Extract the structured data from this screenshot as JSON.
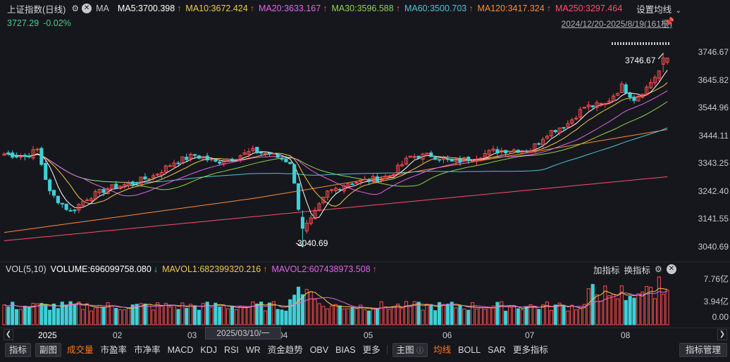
{
  "header": {
    "index_name": "上证指数",
    "period": "(日线)",
    "ma_label": "MA",
    "ma_items": [
      {
        "label": "MA5:3700.398",
        "color": "#ffffff",
        "arrow": "↑"
      },
      {
        "label": "MA10:3672.424",
        "color": "#f2c94c",
        "arrow": "↑"
      },
      {
        "label": "MA20:3633.167",
        "color": "#e066e6",
        "arrow": "↑"
      },
      {
        "label": "MA30:3596.588",
        "color": "#8fd14f",
        "arrow": "↑"
      },
      {
        "label": "MA60:3500.703",
        "color": "#4fc3d9",
        "arrow": "↑"
      },
      {
        "label": "MA120:3417.324",
        "color": "#ff8a33",
        "arrow": "↑"
      },
      {
        "label": "MA250:3297.464",
        "color": "#ff4d6d",
        "arrow": ""
      }
    ],
    "settings_label": "设置均线",
    "price": "3727.29",
    "change": "-0.02%",
    "date_range": "2024/12/20-2025/8/19(161根)"
  },
  "price_axis": {
    "ticks": [
      "3746.67",
      "3645.82",
      "3544.96",
      "3444.11",
      "3343.25",
      "3242.40",
      "3141.55",
      "3040.69"
    ],
    "max": 3746.67,
    "min": 3040.69
  },
  "annotations": {
    "high_label": "3746.67",
    "low_label": "3040.69"
  },
  "volume": {
    "title": "VOL(5,10)",
    "volume_label": "VOLUME:696099758.080",
    "volume_arrow": "↓",
    "mavol1_label": "MAVOL1:682399320.216",
    "mavol1_arrow": "↑",
    "mavol2_label": "MAVOL2:607438973.508",
    "mavol2_arrow": "↑",
    "add_indicator": "加指标",
    "switch_indicator": "换指标",
    "axis_ticks": [
      "7.76亿",
      "3.94亿",
      "0.00"
    ]
  },
  "x_axis": {
    "labels": [
      "2025",
      "02",
      "03",
      "04",
      "05",
      "06",
      "07",
      "08"
    ],
    "cursor_date": "2025/03/10/一"
  },
  "tabs": {
    "items": [
      {
        "label": "指标",
        "style": "boxed"
      },
      {
        "label": "副图",
        "style": "boxed"
      },
      {
        "label": "成交量",
        "style": "active"
      },
      {
        "label": "市盈率",
        "style": ""
      },
      {
        "label": "市净率",
        "style": ""
      },
      {
        "label": "MACD",
        "style": ""
      },
      {
        "label": "KDJ",
        "style": ""
      },
      {
        "label": "RSI",
        "style": ""
      },
      {
        "label": "WR",
        "style": ""
      },
      {
        "label": "资金趋势",
        "style": ""
      },
      {
        "label": "OBV",
        "style": ""
      },
      {
        "label": "BIAS",
        "style": ""
      },
      {
        "label": "更多",
        "style": ""
      }
    ],
    "main_label": "主图",
    "main_items": [
      {
        "label": "均线",
        "style": "active"
      },
      {
        "label": "BOLL",
        "style": ""
      },
      {
        "label": "SAR",
        "style": ""
      },
      {
        "label": "更多指标",
        "style": ""
      }
    ],
    "manage_label": "指标管理"
  },
  "colors": {
    "up": "#ff4d4d",
    "down": "#3fd0d8",
    "background": "#16171c",
    "ma5": "#ffffff",
    "ma10": "#f2c94c",
    "ma20": "#e066e6",
    "ma30": "#8fd14f",
    "ma60": "#4fc3d9",
    "ma120": "#ff8a33",
    "ma250": "#ff4d6d"
  },
  "chart_data": {
    "type": "candlestick",
    "series_close_anchors": [
      [
        0,
        3380
      ],
      [
        5,
        3370
      ],
      [
        8,
        3395
      ],
      [
        11,
        3240
      ],
      [
        16,
        3170
      ],
      [
        20,
        3220
      ],
      [
        25,
        3255
      ],
      [
        30,
        3270
      ],
      [
        36,
        3300
      ],
      [
        41,
        3350
      ],
      [
        46,
        3375
      ],
      [
        51,
        3350
      ],
      [
        56,
        3370
      ],
      [
        60,
        3390
      ],
      [
        64,
        3380
      ],
      [
        69,
        3350
      ],
      [
        72,
        3105
      ],
      [
        74,
        3140
      ],
      [
        78,
        3240
      ],
      [
        83,
        3275
      ],
      [
        88,
        3285
      ],
      [
        93,
        3300
      ],
      [
        98,
        3370
      ],
      [
        103,
        3375
      ],
      [
        108,
        3350
      ],
      [
        113,
        3365
      ],
      [
        118,
        3390
      ],
      [
        123,
        3395
      ],
      [
        127,
        3395
      ],
      [
        131,
        3455
      ],
      [
        136,
        3490
      ],
      [
        140,
        3550
      ],
      [
        145,
        3560
      ],
      [
        149,
        3625
      ],
      [
        152,
        3580
      ],
      [
        155,
        3620
      ],
      [
        158,
        3680
      ],
      [
        160,
        3727.29
      ]
    ],
    "candle_count": 161,
    "volume_max_yi": 7.76
  }
}
